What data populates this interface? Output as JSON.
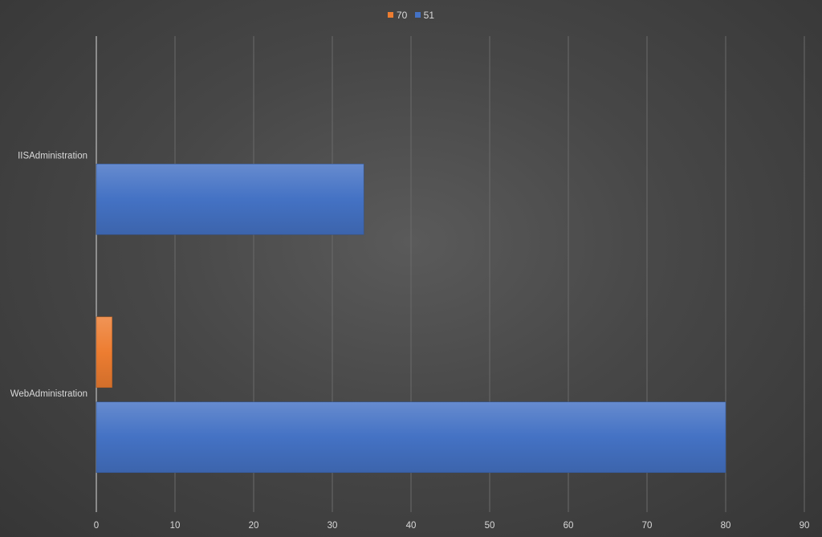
{
  "chart_data": {
    "type": "bar",
    "orientation": "horizontal",
    "categories": [
      "IISAdministration",
      "WebAdministration"
    ],
    "series": [
      {
        "name": "70",
        "color": "#ed7d31",
        "values": [
          0,
          2
        ]
      },
      {
        "name": "51",
        "color": "#4472c4",
        "values": [
          34,
          80
        ]
      }
    ],
    "xlim": [
      0,
      90
    ],
    "xticks": [
      0,
      10,
      20,
      30,
      40,
      50,
      60,
      70,
      80,
      90
    ],
    "grid": true,
    "legend_position": "top-center",
    "title": "",
    "xlabel": "",
    "ylabel": ""
  }
}
